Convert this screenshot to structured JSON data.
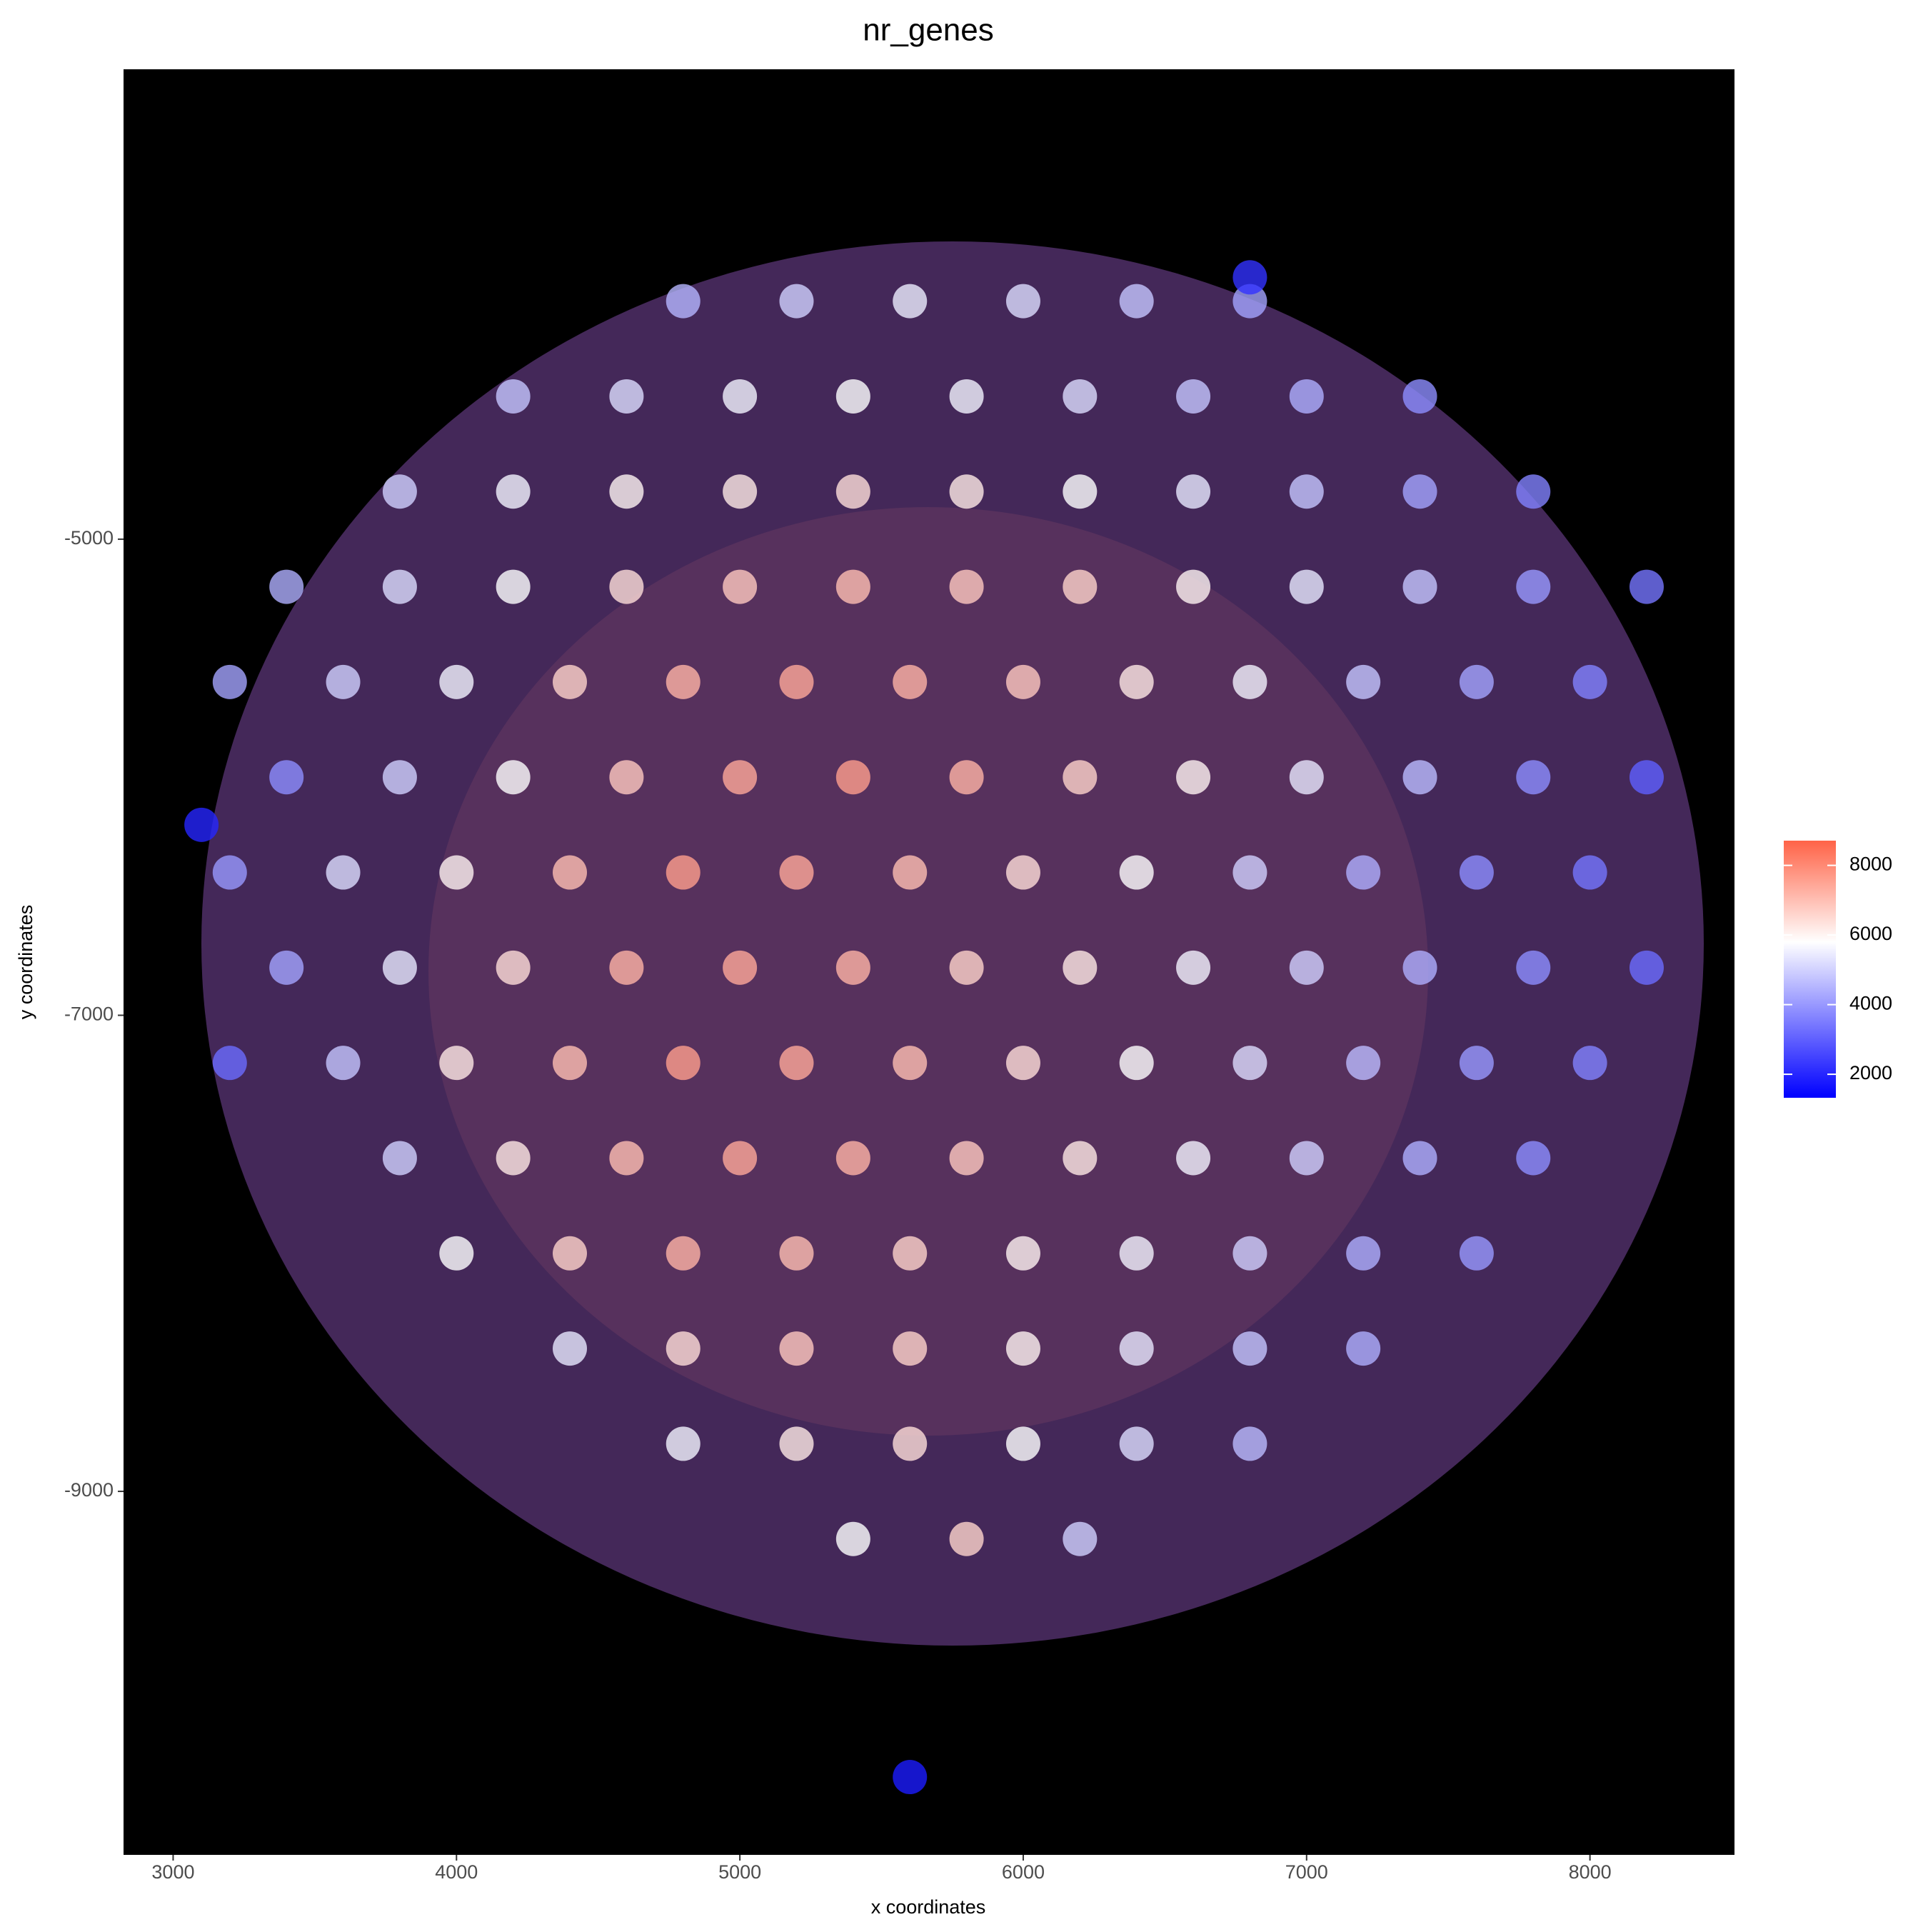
{
  "chart_data": {
    "type": "scatter",
    "title": "nr_genes",
    "x_label": "x coordinates",
    "y_label": "y coordinates",
    "xlim": [
      2825,
      8510
    ],
    "ylim": [
      -10527,
      -3026
    ],
    "xticks": [
      3000,
      4000,
      5000,
      6000,
      7000,
      8000
    ],
    "yticks": [
      -9000,
      -7000,
      -5000
    ],
    "color_scale": {
      "low": "#0000ff",
      "mid": "#ffffff",
      "high": "#ff6347",
      "midpoint": 5800,
      "limits": [
        1325,
        8710
      ],
      "ticks": [
        2000,
        4000,
        6000,
        8000
      ]
    },
    "x": [
      4800,
      5200,
      5600,
      6000,
      6400,
      6800,
      4200,
      4600,
      5000,
      5400,
      5800,
      6200,
      6600,
      7000,
      7400,
      3800,
      4200,
      4600,
      5000,
      5400,
      5800,
      6200,
      6600,
      7000,
      7400,
      7800,
      3400,
      3800,
      4200,
      4600,
      5000,
      5400,
      5800,
      6200,
      6600,
      7000,
      7400,
      7800,
      8200,
      3200,
      3600,
      4000,
      4400,
      4800,
      5200,
      5600,
      6000,
      6400,
      6800,
      7200,
      7600,
      8000,
      3400,
      3800,
      4200,
      4600,
      5000,
      5400,
      5800,
      6200,
      6600,
      7000,
      7400,
      7800,
      8200,
      3200,
      3600,
      4000,
      4400,
      4800,
      5200,
      5600,
      6000,
      6400,
      6800,
      7200,
      7600,
      8000,
      3400,
      3800,
      4200,
      4600,
      5000,
      5400,
      5800,
      6200,
      6600,
      7000,
      7400,
      7800,
      8200,
      3200,
      3600,
      4000,
      4400,
      4800,
      5200,
      5600,
      6000,
      6400,
      6800,
      7200,
      7600,
      8000,
      3800,
      4200,
      4600,
      5000,
      5400,
      5800,
      6200,
      6600,
      7000,
      7400,
      7800,
      4000,
      4400,
      4800,
      5200,
      5600,
      6000,
      6400,
      6800,
      7200,
      7600,
      4400,
      4800,
      5200,
      5600,
      6000,
      6400,
      6800,
      7200,
      4800,
      5200,
      5600,
      6000,
      6400,
      6800,
      5400,
      5800,
      6200,
      3100,
      5600,
      6800
    ],
    "y": [
      -4000,
      -4000,
      -4000,
      -4000,
      -4000,
      -4000,
      -4400,
      -4400,
      -4400,
      -4400,
      -4400,
      -4400,
      -4400,
      -4400,
      -4400,
      -4800,
      -4800,
      -4800,
      -4800,
      -4800,
      -4800,
      -4800,
      -4800,
      -4800,
      -4800,
      -4800,
      -5200,
      -5200,
      -5200,
      -5200,
      -5200,
      -5200,
      -5200,
      -5200,
      -5200,
      -5200,
      -5200,
      -5200,
      -5200,
      -5600,
      -5600,
      -5600,
      -5600,
      -5600,
      -5600,
      -5600,
      -5600,
      -5600,
      -5600,
      -5600,
      -5600,
      -5600,
      -6000,
      -6000,
      -6000,
      -6000,
      -6000,
      -6000,
      -6000,
      -6000,
      -6000,
      -6000,
      -6000,
      -6000,
      -6000,
      -6400,
      -6400,
      -6400,
      -6400,
      -6400,
      -6400,
      -6400,
      -6400,
      -6400,
      -6400,
      -6400,
      -6400,
      -6400,
      -6800,
      -6800,
      -6800,
      -6800,
      -6800,
      -6800,
      -6800,
      -6800,
      -6800,
      -6800,
      -6800,
      -6800,
      -6800,
      -7200,
      -7200,
      -7200,
      -7200,
      -7200,
      -7200,
      -7200,
      -7200,
      -7200,
      -7200,
      -7200,
      -7200,
      -7200,
      -7600,
      -7600,
      -7600,
      -7600,
      -7600,
      -7600,
      -7600,
      -7600,
      -7600,
      -7600,
      -7600,
      -8000,
      -8000,
      -8000,
      -8000,
      -8000,
      -8000,
      -8000,
      -8000,
      -8000,
      -8000,
      -8400,
      -8400,
      -8400,
      -8400,
      -8400,
      -8400,
      -8400,
      -8400,
      -8800,
      -8800,
      -8800,
      -8800,
      -8800,
      -8800,
      -9200,
      -9200,
      -9200,
      -6200,
      -10200,
      -3900
    ],
    "values": [
      4500,
      5000,
      5500,
      5200,
      4800,
      4200,
      4800,
      5200,
      5600,
      5800,
      5600,
      5200,
      4800,
      4400,
      3800,
      5000,
      5600,
      6000,
      6200,
      6400,
      6200,
      5800,
      5400,
      4800,
      4200,
      3600,
      4400,
      5200,
      5800,
      6400,
      6800,
      7000,
      6800,
      6600,
      6000,
      5400,
      4800,
      4000,
      3400,
      4200,
      5000,
      5600,
      6600,
      7200,
      7400,
      7200,
      6800,
      6200,
      5600,
      4800,
      4200,
      3600,
      3800,
      5000,
      5800,
      6800,
      7400,
      7600,
      7200,
      6600,
      6000,
      5400,
      4600,
      3800,
      3000,
      4000,
      5200,
      6000,
      7000,
      7600,
      7400,
      7000,
      6400,
      5800,
      5000,
      4400,
      3800,
      3400,
      4200,
      5400,
      6400,
      7200,
      7400,
      7200,
      6600,
      6200,
      5600,
      5000,
      4400,
      3800,
      3200,
      3200,
      4800,
      6200,
      7000,
      7600,
      7400,
      7000,
      6400,
      5800,
      5200,
      4600,
      4000,
      3600,
      5000,
      6200,
      7000,
      7400,
      7200,
      6800,
      6200,
      5600,
      5000,
      4400,
      3800,
      5800,
      6600,
      7200,
      7000,
      6600,
      6000,
      5600,
      5000,
      4400,
      4000,
      5400,
      6400,
      6800,
      6600,
      6000,
      5400,
      4800,
      4400,
      5600,
      6200,
      6400,
      5800,
      5200,
      4600,
      5800,
      6600,
      5000,
      2000,
      1800,
      2200
    ]
  }
}
